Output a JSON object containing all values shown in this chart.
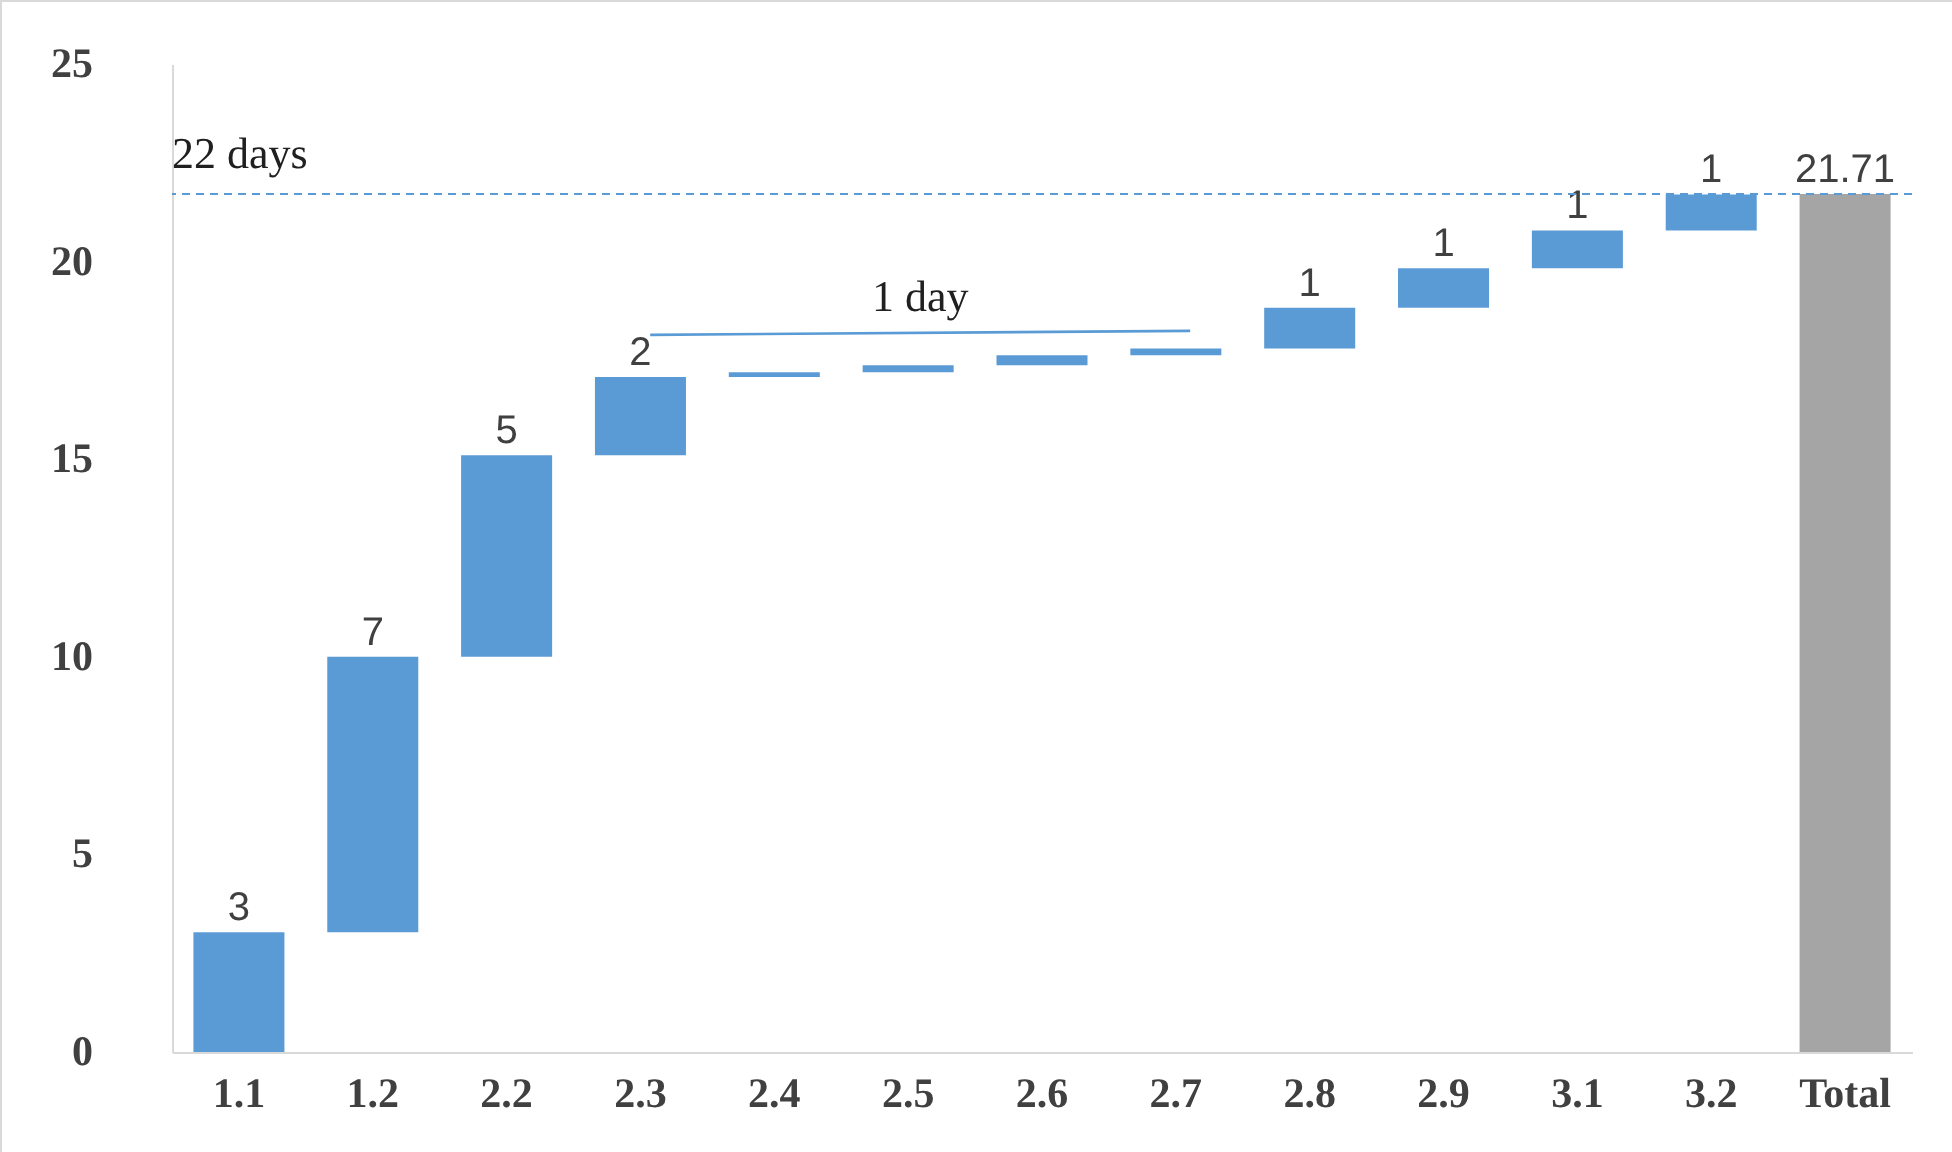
{
  "chart_data": {
    "type": "bar",
    "categories": [
      "1.1",
      "1.2",
      "2.2",
      "2.3",
      "2.4",
      "2.5",
      "2.6",
      "2.7",
      "2.8",
      "2.9",
      "3.1",
      "3.2",
      "Total"
    ],
    "values": [
      3.03,
      6.97,
      5.1,
      1.98,
      0.12,
      0.18,
      0.25,
      0.17,
      1.03,
      1.0,
      0.96,
      0.91,
      21.71
    ],
    "base": [
      0,
      3.03,
      10,
      15.1,
      17.08,
      17.2,
      17.38,
      17.63,
      17.8,
      18.83,
      19.83,
      20.79,
      0
    ],
    "colors": [
      "#5b9bd5",
      "#5b9bd5",
      "#5b9bd5",
      "#5b9bd5",
      "#5b9bd5",
      "#5b9bd5",
      "#5b9bd5",
      "#5b9bd5",
      "#5b9bd5",
      "#5b9bd5",
      "#5b9bd5",
      "#5b9bd5",
      "#a5a5a5"
    ],
    "value_labels": [
      "3",
      "7",
      "5",
      "2",
      null,
      null,
      null,
      null,
      "1",
      "1",
      "1",
      "1",
      "21.71"
    ],
    "ylim": [
      0,
      25
    ],
    "yticks": [
      0,
      5,
      10,
      15,
      20,
      25
    ],
    "grid": false,
    "ref_lines": [
      {
        "axis": "y",
        "value": 21.71,
        "label": "22 days",
        "color": "#5b9bd5",
        "line_style": "dashed"
      }
    ],
    "annotations": [
      "1 day"
    ]
  }
}
